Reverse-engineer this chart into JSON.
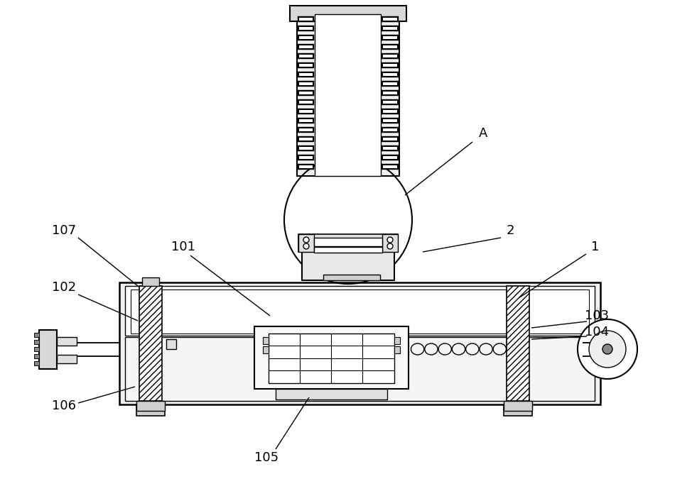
{
  "bg_color": "#ffffff",
  "figsize": [
    9.74,
    6.99
  ],
  "dpi": 100
}
